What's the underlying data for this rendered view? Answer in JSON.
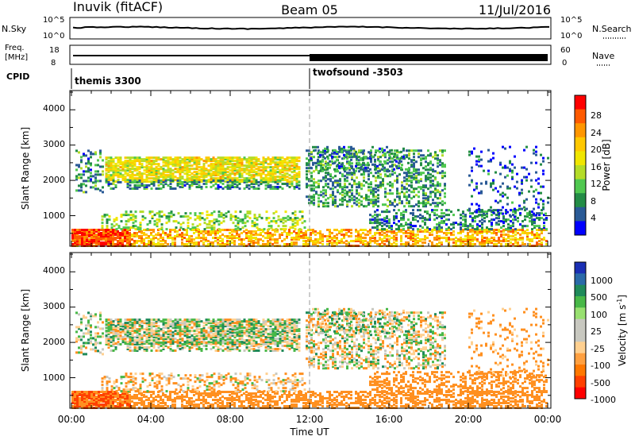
{
  "header": {
    "station": "Inuvik (fitACF)",
    "beam": "Beam 05",
    "date": "11/Jul/2016"
  },
  "strip_panels": {
    "nsky": {
      "label": "N.Sky",
      "ticks": [
        "10^5",
        "10^0"
      ]
    },
    "nsearch": {
      "label": "N.Search",
      "ticks": [
        "10^5",
        "10^0"
      ]
    },
    "freq": {
      "label_line1": "Freq.",
      "label_line2": "[MHz]",
      "ticks": [
        "18",
        "8"
      ]
    },
    "nave": {
      "label": "Nave",
      "ticks": [
        "60",
        "0"
      ]
    },
    "cpid": {
      "label": "CPID",
      "modes": [
        "themis 3300",
        "twofsound -3503"
      ]
    }
  },
  "colorbars": {
    "power": {
      "label": "Power [dB]",
      "ticks": [
        "28",
        "24",
        "20",
        "16",
        "12",
        "8",
        "4"
      ],
      "colors": [
        "#ff0000",
        "#ff5a00",
        "#ff9600",
        "#ffc800",
        "#f0e600",
        "#b4dc28",
        "#50c850",
        "#238c46",
        "#2a5a96",
        "#0000ff"
      ]
    },
    "velocity": {
      "label": "Velocity [m s",
      "label_sup": "-1",
      "label_end": "]",
      "ticks": [
        "1000",
        "500",
        "100",
        "25",
        "-25",
        "-100",
        "-500",
        "-1000"
      ],
      "colors": [
        "#1a2fb4",
        "#2a6aa8",
        "#1f8a5a",
        "#48b848",
        "#98e070",
        "#c8c8c0",
        "#c8c8c0",
        "#ffd090",
        "#ffa040",
        "#ff7800",
        "#ff4000",
        "#ff0000"
      ]
    }
  },
  "axes": {
    "ylabel": "Slant Range [km]",
    "yticks": [
      "4000",
      "3000",
      "2000",
      "1000"
    ],
    "xticks": [
      "00:00",
      "04:00",
      "08:00",
      "12:00",
      "16:00",
      "20:00",
      "00:00"
    ],
    "xlabel": "Time UT"
  },
  "chart_data": {
    "type": "heatmap",
    "x_range_hours": [
      0,
      24
    ],
    "y_range_km": [
      180,
      4500
    ],
    "panels": [
      {
        "name": "Power",
        "unit": "dB",
        "color_range": [
          0,
          30
        ]
      },
      {
        "name": "Velocity",
        "unit": "m s-1",
        "color_range": [
          -1000,
          1000
        ]
      }
    ],
    "scatter_bands": [
      {
        "t0": 0.0,
        "t1": 24.0,
        "r0": 180,
        "r1": 650,
        "power": 22,
        "velocity": -300,
        "density": 0.55
      },
      {
        "t0": 0.0,
        "t1": 3.0,
        "r0": 180,
        "r1": 650,
        "power": 28,
        "velocity": -500,
        "density": 0.85
      },
      {
        "t0": 0.2,
        "t1": 1.6,
        "r0": 1700,
        "r1": 2900,
        "power": 9,
        "velocity": 25,
        "density": 0.3
      },
      {
        "t0": 1.7,
        "t1": 11.5,
        "r0": 2000,
        "r1": 2700,
        "power": 18,
        "velocity": 0,
        "density": 0.75
      },
      {
        "t0": 1.7,
        "t1": 11.5,
        "r0": 1800,
        "r1": 2050,
        "power": 9,
        "velocity": 0,
        "density": 0.45
      },
      {
        "t0": 1.5,
        "t1": 11.7,
        "r0": 650,
        "r1": 1150,
        "power": 14,
        "velocity": -100,
        "density": 0.3
      },
      {
        "t0": 11.8,
        "t1": 18.8,
        "r0": 1300,
        "r1": 2900,
        "power": 10,
        "velocity": -25,
        "density": 0.4
      },
      {
        "t0": 12.0,
        "t1": 17.0,
        "r0": 2300,
        "r1": 3000,
        "power": 8,
        "velocity": 0,
        "density": 0.25
      },
      {
        "t0": 15.0,
        "t1": 24.0,
        "r0": 650,
        "r1": 1200,
        "power": 8,
        "velocity": -300,
        "density": 0.35
      },
      {
        "t0": 20.0,
        "t1": 24.0,
        "r0": 1000,
        "r1": 3000,
        "power": 6,
        "velocity": -200,
        "density": 0.12
      }
    ]
  }
}
